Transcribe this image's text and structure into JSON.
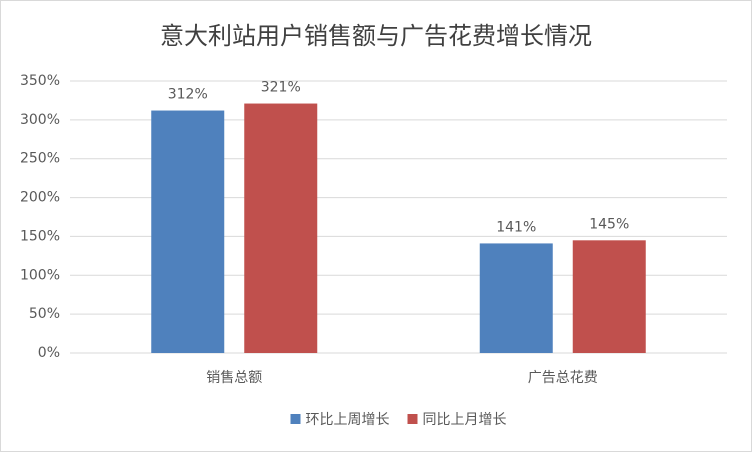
{
  "chart_data": {
    "type": "bar",
    "title": "意大利站用户销售额与广告花费增长情况",
    "categories": [
      "销售总额",
      "广告总花费"
    ],
    "series": [
      {
        "name": "环比上周增长",
        "color": "#4f81bd",
        "values": [
          312,
          141
        ],
        "value_labels": [
          "312%",
          "141%"
        ]
      },
      {
        "name": "同比上月增长",
        "color": "#c0504d",
        "values": [
          321,
          145
        ],
        "value_labels": [
          "321%",
          "145%"
        ]
      }
    ],
    "ylim": [
      0,
      350
    ],
    "yticks": [
      {
        "value": 0,
        "label": "0%"
      },
      {
        "value": 50,
        "label": "50%"
      },
      {
        "value": 100,
        "label": "100%"
      },
      {
        "value": 150,
        "label": "150%"
      },
      {
        "value": 200,
        "label": "200%"
      },
      {
        "value": 250,
        "label": "250%"
      },
      {
        "value": 300,
        "label": "300%"
      },
      {
        "value": 350,
        "label": "350%"
      }
    ],
    "grid": true,
    "legend": "bottom"
  }
}
